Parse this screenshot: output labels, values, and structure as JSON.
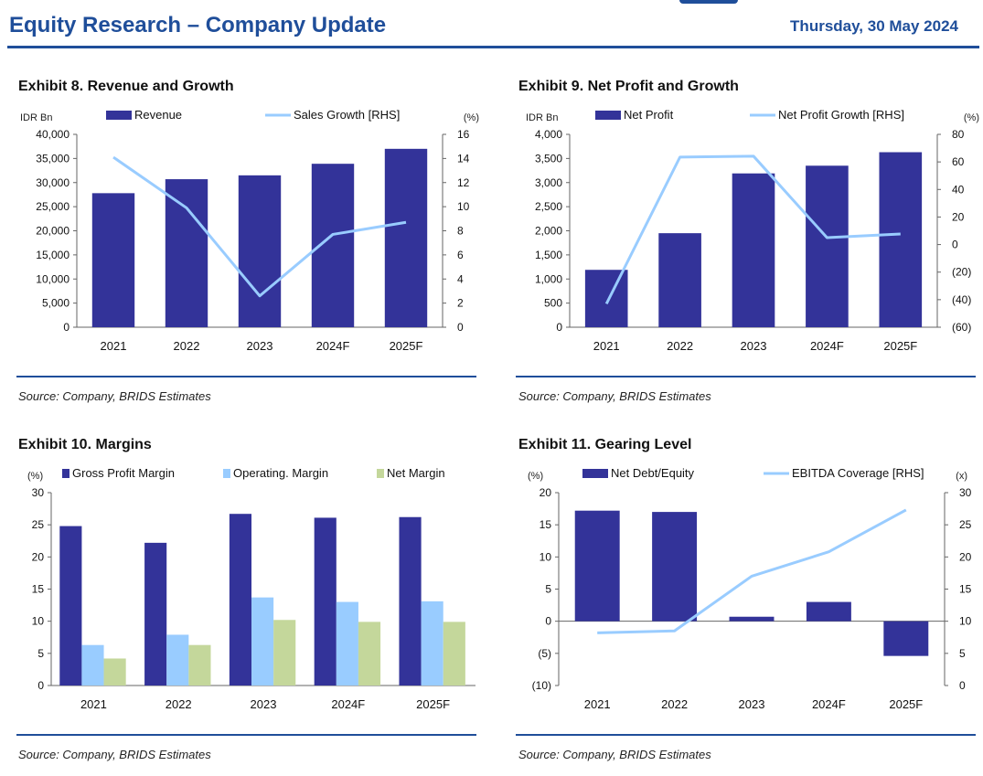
{
  "header": {
    "title": "Equity Research – Company Update",
    "date": "Thursday, 30 May 2024"
  },
  "colors": {
    "brand": "#1f4e9a",
    "bar_dark": "#333399",
    "line_light": "#99ccff",
    "bar_light_blue": "#99ccff",
    "bar_green": "#c4d79b"
  },
  "exhibits": [
    {
      "num": "Exhibit 8",
      "sep": ".",
      "title": "Revenue and Growth",
      "source": "Source: Company, BRIDS Estimates"
    },
    {
      "num": "Exhibit 9",
      "sep": ".",
      "title": "Net Profit and Growth",
      "source": "Source: Company, BRIDS Estimates"
    },
    {
      "num": "Exhibit 10",
      "sep": ".",
      "title": "Margins",
      "source": "Source: Company, BRIDS Estimates"
    },
    {
      "num": "Exhibit 11",
      "sep": ".",
      "title": "Gearing Level",
      "source": "Source: Company, BRIDS Estimates"
    }
  ],
  "chart_data": [
    {
      "id": "revenue",
      "type": "bar+line",
      "categories": [
        "2021",
        "2022",
        "2023",
        "2024F",
        "2025F"
      ],
      "left_unit": "IDR Bn",
      "right_unit": "(%)",
      "left_axis": {
        "min": 0,
        "max": 40000,
        "ticks": [
          "0",
          "5,000",
          "10,000",
          "15,000",
          "20,000",
          "25,000",
          "30,000",
          "35,000",
          "40,000"
        ]
      },
      "right_axis": {
        "min": 0,
        "max": 16,
        "ticks": [
          "0",
          "2",
          "4",
          "6",
          "8",
          "10",
          "12",
          "14",
          "16"
        ]
      },
      "bars": [
        {
          "name": "Revenue",
          "values": [
            27800,
            30700,
            31500,
            33900,
            37000
          ]
        }
      ],
      "lines": [
        {
          "name": "Sales Growth [RHS]",
          "values": [
            14.1,
            9.9,
            2.6,
            7.7,
            8.7
          ]
        }
      ]
    },
    {
      "id": "net-profit",
      "type": "bar+line",
      "categories": [
        "2021",
        "2022",
        "2023",
        "2024F",
        "2025F"
      ],
      "left_unit": "IDR Bn",
      "right_unit": "(%)",
      "left_axis": {
        "min": 0,
        "max": 4000,
        "ticks": [
          "0",
          "500",
          "1,000",
          "1,500",
          "2,000",
          "2,500",
          "3,000",
          "3,500",
          "4,000"
        ]
      },
      "right_axis": {
        "min": -60,
        "max": 80,
        "ticks": [
          "(60)",
          "(40)",
          "(20)",
          "0",
          "20",
          "40",
          "60",
          "80"
        ]
      },
      "bars": [
        {
          "name": "Net Profit",
          "values": [
            1190,
            1950,
            3190,
            3350,
            3630
          ]
        }
      ],
      "lines": [
        {
          "name": "Net Profit Growth [RHS]",
          "values": [
            -43,
            63.5,
            64.2,
            5,
            7.7
          ]
        }
      ]
    },
    {
      "id": "margins",
      "type": "bar",
      "categories": [
        "2021",
        "2022",
        "2023",
        "2024F",
        "2025F"
      ],
      "left_unit": "(%)",
      "left_axis": {
        "min": 0,
        "max": 30,
        "ticks": [
          "0",
          "5",
          "10",
          "15",
          "20",
          "25",
          "30"
        ]
      },
      "series": [
        {
          "name": "Gross Profit Margin",
          "values": [
            24.8,
            22.2,
            26.7,
            26.1,
            26.2
          ]
        },
        {
          "name": "Operating. Margin",
          "values": [
            6.3,
            7.9,
            13.7,
            13.0,
            13.1
          ]
        },
        {
          "name": "Net Margin",
          "values": [
            4.2,
            6.3,
            10.2,
            9.9,
            9.9
          ]
        }
      ]
    },
    {
      "id": "gearing",
      "type": "bar+line",
      "categories": [
        "2021",
        "2022",
        "2023",
        "2024F",
        "2025F"
      ],
      "left_unit": "(%)",
      "right_unit": "(x)",
      "left_axis": {
        "min": -10,
        "max": 20,
        "ticks": [
          "(10)",
          "(5)",
          "0",
          "5",
          "10",
          "15",
          "20"
        ]
      },
      "right_axis": {
        "min": 0,
        "max": 30,
        "ticks": [
          "0",
          "5",
          "10",
          "15",
          "20",
          "25",
          "30"
        ]
      },
      "bars": [
        {
          "name": "Net Debt/Equity",
          "values": [
            17.2,
            17.0,
            0.7,
            3.0,
            -5.4
          ]
        }
      ],
      "lines": [
        {
          "name": "EBITDA Coverage [RHS]",
          "values": [
            8.2,
            8.5,
            17.0,
            20.8,
            27.3
          ]
        }
      ]
    }
  ]
}
